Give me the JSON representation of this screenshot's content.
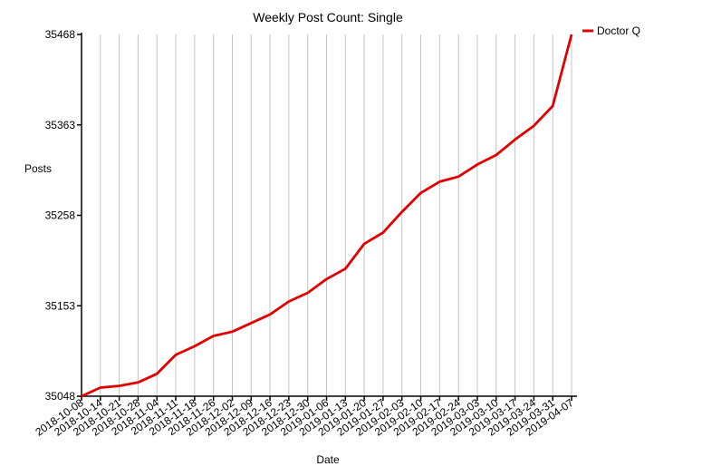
{
  "chart_data": {
    "type": "line",
    "title": "Weekly Post Count: Single",
    "xlabel": "Date",
    "ylabel": "Posts",
    "x": [
      "2018-10-08",
      "2018-10-14",
      "2018-10-21",
      "2018-10-28",
      "2018-11-04",
      "2018-11-11",
      "2018-11-18",
      "2018-11-26",
      "2018-12-02",
      "2018-12-09",
      "2018-12-16",
      "2018-12-23",
      "2018-12-30",
      "2019-01-06",
      "2019-01-13",
      "2019-01-20",
      "2019-01-27",
      "2019-02-03",
      "2019-02-10",
      "2019-02-17",
      "2019-02-24",
      "2019-03-03",
      "2019-03-10",
      "2019-03-17",
      "2019-03-24",
      "2019-03-31",
      "2019-04-07"
    ],
    "yticks": [
      35048,
      35153,
      35258,
      35363,
      35468
    ],
    "ylim": [
      35048,
      35468
    ],
    "grid": "vertical",
    "legend": "top-right",
    "series": [
      {
        "name": "Doctor Q",
        "color": "#e00000",
        "values": [
          35048,
          35058,
          35060,
          35064,
          35074,
          35096,
          35106,
          35118,
          35123,
          35133,
          35143,
          35158,
          35168,
          35184,
          35196,
          35225,
          35238,
          35262,
          35284,
          35297,
          35303,
          35317,
          35328,
          35346,
          35362,
          35385,
          35468
        ]
      }
    ]
  }
}
